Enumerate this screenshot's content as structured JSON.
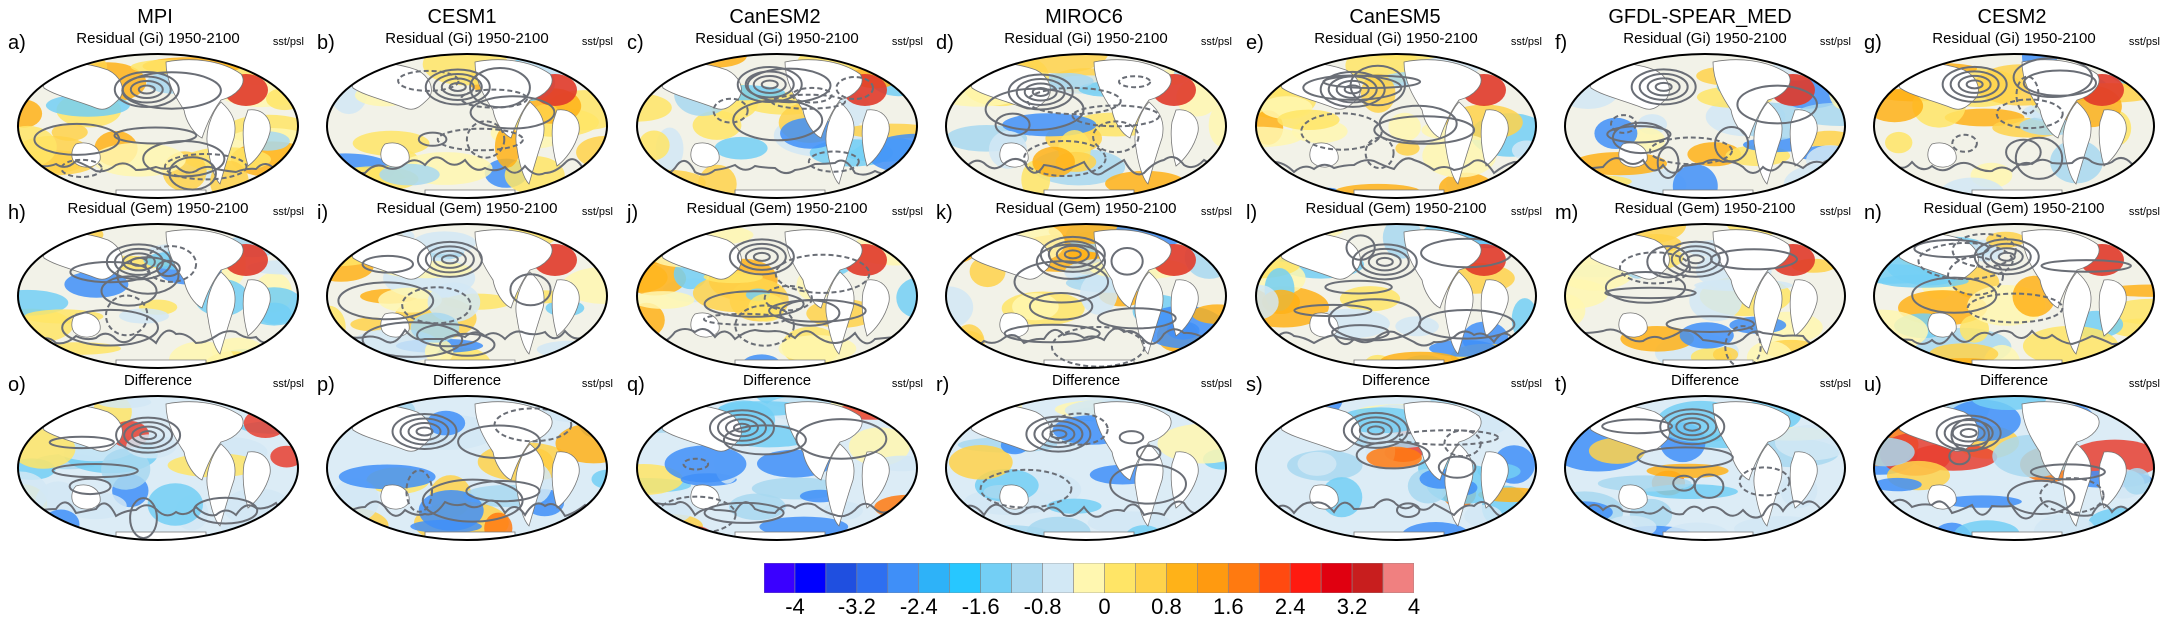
{
  "models": [
    "MPI",
    "CESM1",
    "CanESM2",
    "MIROC6",
    "CanESM5",
    "GFDL-SPEAR_MED",
    "CESM2"
  ],
  "rows": [
    {
      "title": "Residual (Gi) 1950-2100",
      "variable": "sst/psl",
      "letters": [
        "a)",
        "b)",
        "c)",
        "d)",
        "e)",
        "f)",
        "g)"
      ]
    },
    {
      "title": "Residual (Gem) 1950-2100",
      "variable": "sst/psl",
      "letters": [
        "h)",
        "i)",
        "j)",
        "k)",
        "l)",
        "m)",
        "n)"
      ]
    },
    {
      "title": "Difference",
      "variable": "sst/psl",
      "letters": [
        "o)",
        "p)",
        "q)",
        "r)",
        "s)",
        "t)",
        "u)"
      ]
    }
  ],
  "colorbar": {
    "colors": [
      "#3a00ff",
      "#0000ff",
      "#1f4fe0",
      "#2e6ff0",
      "#3f8ff8",
      "#2eb2f8",
      "#27c7ff",
      "#73cff5",
      "#a8d8f0",
      "#d2e8f5",
      "#fff7b0",
      "#ffe566",
      "#ffd24a",
      "#ffb218",
      "#ff9a10",
      "#ff7a10",
      "#ff4a10",
      "#ff1a10",
      "#e00010",
      "#c81e1e",
      "#f08080"
    ],
    "tick_labels": [
      "-4",
      "-3.2",
      "-2.4",
      "-1.6",
      "-0.8",
      "0",
      "0.8",
      "1.6",
      "2.4",
      "3.2",
      "4"
    ]
  }
}
